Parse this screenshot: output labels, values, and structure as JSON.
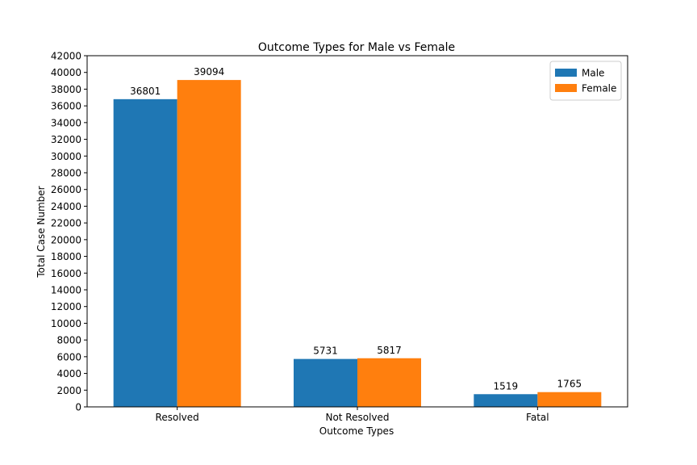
{
  "chart_data": {
    "type": "bar",
    "title": "Outcome Types for Male vs Female",
    "xlabel": "Outcome Types",
    "ylabel": "Total Case Number",
    "categories": [
      "Resolved",
      "Not Resolved",
      "Fatal"
    ],
    "series": [
      {
        "name": "Male",
        "color": "#1f77b4",
        "values": [
          36801,
          5731,
          1519
        ]
      },
      {
        "name": "Female",
        "color": "#ff7f0e",
        "values": [
          39094,
          5817,
          1765
        ]
      }
    ],
    "ylim": [
      0,
      42000
    ],
    "yticks": [
      0,
      2000,
      4000,
      6000,
      8000,
      10000,
      12000,
      14000,
      16000,
      18000,
      20000,
      22000,
      24000,
      26000,
      28000,
      30000,
      32000,
      34000,
      36000,
      38000,
      40000,
      42000
    ],
    "data_labels": true,
    "grid": false,
    "legend_position": "top-right"
  }
}
